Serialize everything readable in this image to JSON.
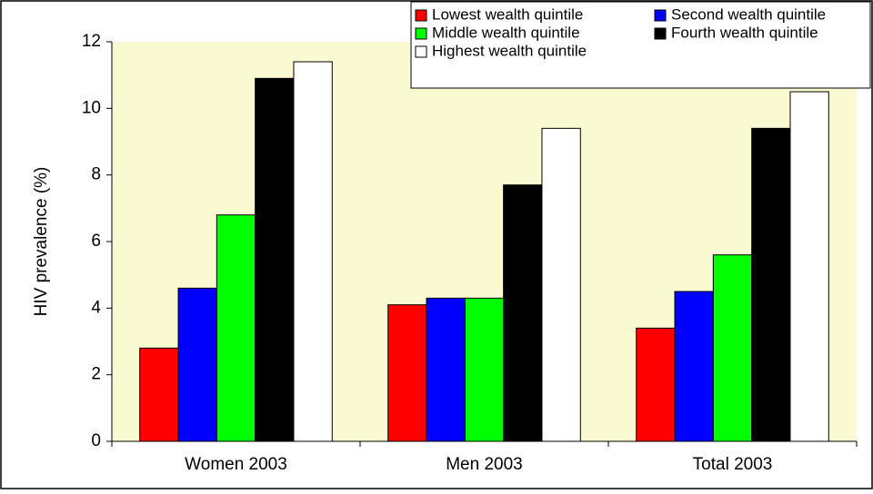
{
  "chart_data": {
    "type": "bar",
    "y_label": "HIV prevalence (%)",
    "categories": [
      "Women 2003",
      "Men 2003",
      "Total 2003"
    ],
    "series": [
      {
        "name": "Lowest wealth quintile",
        "color": "#ff0000",
        "values": [
          2.8,
          4.1,
          3.4
        ]
      },
      {
        "name": "Second wealth quintile",
        "color": "#0000ff",
        "values": [
          4.6,
          4.3,
          4.5
        ]
      },
      {
        "name": "Middle wealth quintile",
        "color": "#00ff00",
        "values": [
          6.8,
          4.3,
          5.6
        ]
      },
      {
        "name": "Fourth wealth quintile",
        "color": "#000000",
        "values": [
          10.9,
          7.7,
          9.4
        ]
      },
      {
        "name": "Highest wealth quintile",
        "color": "#ffffff",
        "values": [
          11.4,
          9.4,
          10.5
        ]
      }
    ],
    "ylim": [
      0,
      12
    ],
    "yticks": [
      0,
      2,
      4,
      6,
      8,
      10,
      12
    ],
    "plot_background": "#fafad2"
  }
}
